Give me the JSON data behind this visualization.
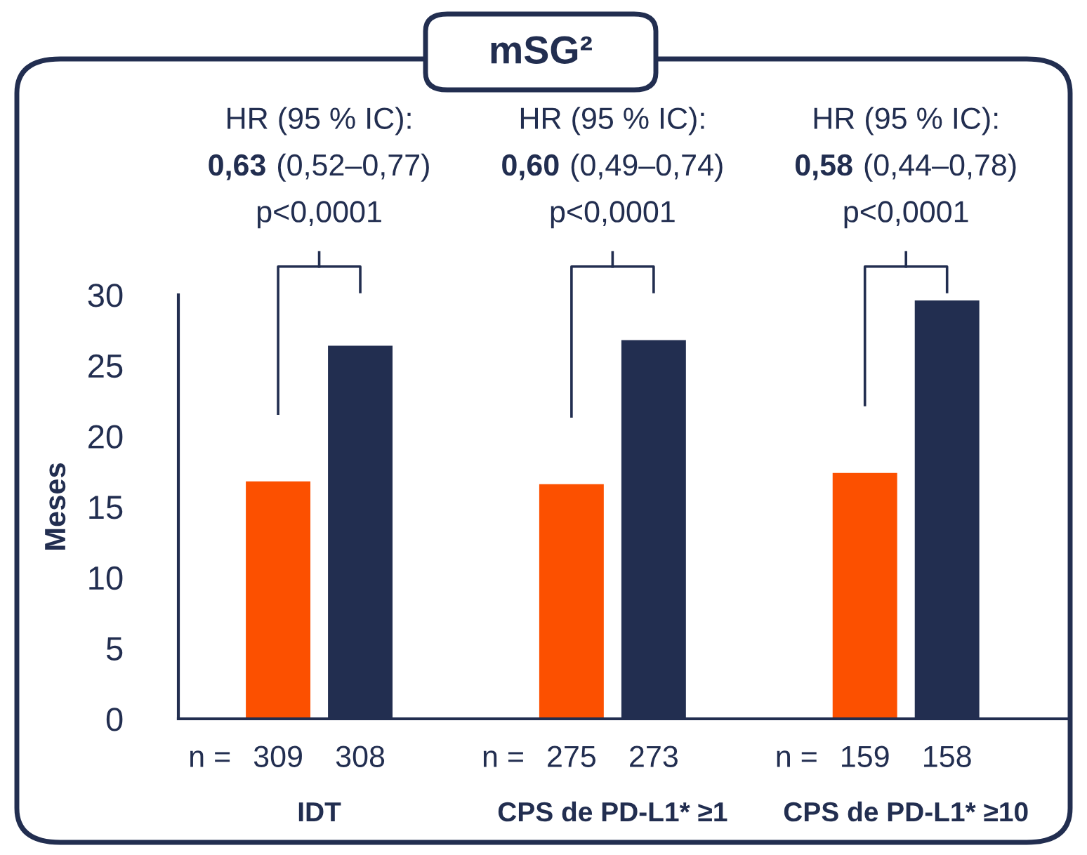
{
  "chart_data": {
    "type": "bar",
    "title": "mSG²",
    "ylabel": "Meses",
    "categories": [
      "IDT",
      "CPS de PD-L1* ≥1",
      "CPS de PD-L1* ≥10"
    ],
    "series": [
      {
        "color": "#fc5000",
        "values": [
          16.8,
          16.6,
          17.4
        ]
      },
      {
        "color": "#222e50",
        "values": [
          26.4,
          26.8,
          29.6
        ]
      }
    ],
    "ylim": [
      0,
      30
    ],
    "yticks": [
      0,
      5,
      10,
      15,
      20,
      25,
      30
    ],
    "grid": false,
    "legend": false,
    "annotations": [
      "HR (95 % IC):",
      "0,63",
      "(0,52–0,77)",
      "p<0,0001",
      "HR (95 % IC):",
      "0,60",
      "(0,49–0,74)",
      "p<0,0001",
      "HR (95 % IC):",
      "0,58",
      "(0,44–0,78)",
      "p<0,0001",
      "n =",
      "309",
      "308",
      "n =",
      "275",
      "273",
      "n =",
      "159",
      "158"
    ]
  }
}
